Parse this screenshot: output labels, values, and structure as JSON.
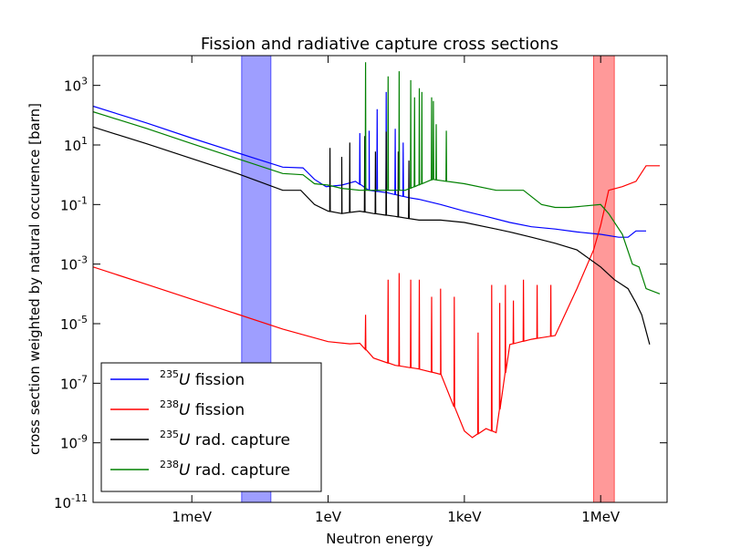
{
  "chart_data": {
    "type": "line",
    "title": "Fission and radiative capture cross sections",
    "xlabel": "Neutron energy",
    "ylabel": "cross section weighted by natural occurence [barn]",
    "xscale": "log",
    "yscale": "log",
    "xlim_eV": [
      6.7e-06,
      29000000
    ],
    "ylim": [
      1e-11,
      10000
    ],
    "x_ticks": [
      {
        "value": 0.001,
        "label": "1meV"
      },
      {
        "value": 1,
        "label": "1eV"
      },
      {
        "value": 1000,
        "label": "1keV"
      },
      {
        "value": 1000000,
        "label": "1MeV"
      }
    ],
    "y_ticks": [
      {
        "value": 1e-11,
        "base": "10",
        "exp": "-11"
      },
      {
        "value": 1e-09,
        "base": "10",
        "exp": "-9"
      },
      {
        "value": 1e-07,
        "base": "10",
        "exp": "-7"
      },
      {
        "value": 1e-05,
        "base": "10",
        "exp": "-5"
      },
      {
        "value": 0.001,
        "base": "10",
        "exp": "-3"
      },
      {
        "value": 0.1,
        "base": "10",
        "exp": "-1"
      },
      {
        "value": 10,
        "base": "10",
        "exp": "1"
      },
      {
        "value": 1000,
        "base": "10",
        "exp": "3"
      }
    ],
    "bands": [
      {
        "x_range_eV": [
          0.0125,
          0.055
        ],
        "color": "#0000ff",
        "opacity": 0.38
      },
      {
        "x_range_eV": [
          700000,
          2000000
        ],
        "color": "#ff0000",
        "opacity": 0.4
      }
    ],
    "legend": {
      "placement": "lower-left",
      "entries": [
        {
          "sup": "235",
          "sym": "U",
          "text": " fission",
          "color": "#0000ff"
        },
        {
          "sup": "238",
          "sym": "U",
          "text": " fission",
          "color": "#ff0000"
        },
        {
          "sup": "235",
          "sym": "U",
          "text": " rad. capture",
          "color": "#000000"
        },
        {
          "sup": "238",
          "sym": "U",
          "text": " rad. capture",
          "color": "#008000"
        }
      ]
    },
    "series": [
      {
        "color": "#0000ff",
        "points": [
          [
            6.7e-06,
            200
          ],
          [
            0.0001,
            55
          ],
          [
            0.001,
            17
          ],
          [
            0.01,
            5.5
          ],
          [
            0.0253,
            3.5
          ],
          [
            0.1,
            1.8
          ],
          [
            0.28,
            1.7
          ],
          [
            0.5,
            0.7
          ],
          [
            0.9,
            0.4
          ],
          [
            2,
            0.45
          ],
          [
            4,
            0.6
          ],
          [
            8,
            0.3
          ],
          [
            20,
            0.25
          ],
          [
            60,
            0.17
          ],
          [
            100,
            0.15
          ],
          [
            300,
            0.1
          ],
          [
            1000,
            0.06
          ],
          [
            3000,
            0.04
          ],
          [
            10000,
            0.025
          ],
          [
            30000,
            0.018
          ],
          [
            100000,
            0.015
          ],
          [
            300000,
            0.012
          ],
          [
            1000000,
            0.01
          ],
          [
            2500000,
            0.008
          ],
          [
            4000000,
            0.008
          ],
          [
            6000000,
            0.013
          ],
          [
            10000000,
            0.013
          ]
        ],
        "spikes": [
          [
            5,
            25
          ],
          [
            8,
            30
          ],
          [
            12,
            160
          ],
          [
            19,
            600
          ],
          [
            30,
            35
          ],
          [
            45,
            12
          ]
        ]
      },
      {
        "color": "#ff0000",
        "points": [
          [
            6.7e-06,
            0.0008
          ],
          [
            0.0001,
            0.00021
          ],
          [
            0.001,
            6.6e-05
          ],
          [
            0.01,
            2.1e-05
          ],
          [
            0.1,
            6.6e-06
          ],
          [
            1,
            2.5e-06
          ],
          [
            3,
            2.1e-06
          ],
          [
            5,
            2.2e-06
          ],
          [
            10,
            7e-07
          ],
          [
            30,
            4e-07
          ],
          [
            100,
            3e-07
          ],
          [
            300,
            2e-07
          ],
          [
            1000,
            2.5e-09
          ],
          [
            1500,
            1.5e-09
          ],
          [
            3000,
            3e-09
          ],
          [
            5000,
            2.2e-09
          ],
          [
            10000,
            2e-06
          ],
          [
            30000,
            3e-06
          ],
          [
            100000,
            4e-06
          ],
          [
            300000,
            0.00015
          ],
          [
            700000,
            0.003
          ],
          [
            1000000,
            0.02
          ],
          [
            1500000,
            0.3
          ],
          [
            3000000,
            0.4
          ],
          [
            6000000,
            0.6
          ],
          [
            10000000,
            2
          ],
          [
            20000000,
            2
          ]
        ],
        "spikes": [
          [
            6.67,
            2e-05
          ],
          [
            20.9,
            0.0003
          ],
          [
            36.7,
            0.0005
          ],
          [
            66,
            0.0003
          ],
          [
            102,
            0.0003
          ],
          [
            190,
            8e-05
          ],
          [
            300,
            0.00015
          ],
          [
            600,
            8e-05
          ],
          [
            2000,
            5e-06
          ],
          [
            4000,
            0.0002
          ],
          [
            6000,
            5e-05
          ],
          [
            8000,
            0.0002
          ],
          [
            12000,
            6e-05
          ],
          [
            20000,
            0.0003
          ],
          [
            40000,
            0.0002
          ],
          [
            80000,
            0.0002
          ]
        ]
      },
      {
        "color": "#000000",
        "points": [
          [
            6.7e-06,
            40
          ],
          [
            0.0001,
            11
          ],
          [
            0.001,
            3.5
          ],
          [
            0.01,
            1.1
          ],
          [
            0.1,
            0.3
          ],
          [
            0.25,
            0.3
          ],
          [
            0.5,
            0.1
          ],
          [
            1,
            0.06
          ],
          [
            2,
            0.05
          ],
          [
            5,
            0.06
          ],
          [
            10,
            0.05
          ],
          [
            30,
            0.04
          ],
          [
            100,
            0.03
          ],
          [
            300,
            0.03
          ],
          [
            1000,
            0.025
          ],
          [
            5000,
            0.015
          ],
          [
            10000,
            0.012
          ],
          [
            30000,
            0.008
          ],
          [
            100000,
            0.005
          ],
          [
            300000,
            0.003
          ],
          [
            1000000,
            0.0008
          ],
          [
            2000000,
            0.0003
          ],
          [
            4000000,
            0.00015
          ],
          [
            6000000,
            5e-05
          ],
          [
            8000000,
            2e-05
          ],
          [
            12000000,
            2e-06
          ]
        ],
        "spikes": [
          [
            1.1,
            8
          ],
          [
            2.0,
            4
          ],
          [
            3,
            12
          ],
          [
            6.4,
            20
          ],
          [
            11,
            6
          ],
          [
            19,
            28
          ],
          [
            35,
            6
          ],
          [
            60,
            3
          ]
        ]
      },
      {
        "color": "#008000",
        "points": [
          [
            6.7e-06,
            130
          ],
          [
            0.0001,
            36
          ],
          [
            0.001,
            11
          ],
          [
            0.01,
            3.5
          ],
          [
            0.1,
            1.1
          ],
          [
            0.28,
            1.0
          ],
          [
            0.5,
            0.5
          ],
          [
            1,
            0.45
          ],
          [
            2,
            0.35
          ],
          [
            5,
            0.3
          ],
          [
            10,
            0.3
          ],
          [
            50,
            0.3
          ],
          [
            200,
            0.7
          ],
          [
            1000,
            0.5
          ],
          [
            5000,
            0.3
          ],
          [
            20000,
            0.3
          ],
          [
            50000,
            0.1
          ],
          [
            100000,
            0.08
          ],
          [
            200000,
            0.08
          ],
          [
            1000000,
            0.1
          ],
          [
            1500000,
            0.05
          ],
          [
            3000000,
            0.01
          ],
          [
            5000000,
            0.001
          ],
          [
            7000000,
            0.0008
          ],
          [
            10000000,
            0.00015
          ],
          [
            20000000,
            0.0001
          ]
        ],
        "spikes": [
          [
            6.67,
            6000
          ],
          [
            20.9,
            2000
          ],
          [
            36.7,
            3000
          ],
          [
            66,
            1500
          ],
          [
            80,
            400
          ],
          [
            102,
            800
          ],
          [
            116,
            600
          ],
          [
            190,
            400
          ],
          [
            208,
            300
          ],
          [
            240,
            50
          ],
          [
            400,
            30
          ]
        ]
      }
    ]
  }
}
